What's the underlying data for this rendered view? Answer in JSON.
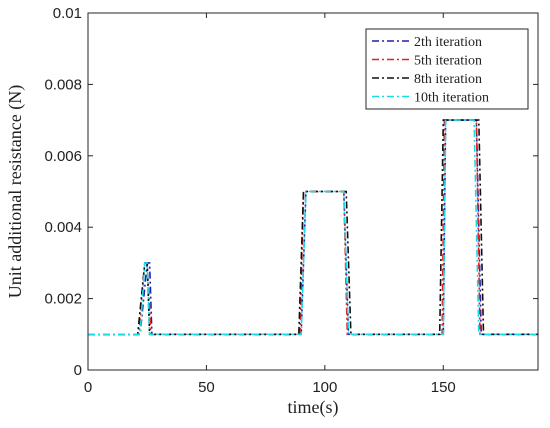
{
  "chart_data": {
    "type": "line",
    "title": "",
    "xlabel": "time(s)",
    "ylabel": "Unit additional resistance (N)",
    "xlim": [
      0,
      190
    ],
    "ylim": [
      0,
      0.01
    ],
    "xticks": [
      0,
      50,
      100,
      150
    ],
    "xtick_labels": [
      "0",
      "50",
      "100",
      "150"
    ],
    "yticks": [
      0,
      0.002,
      0.004,
      0.006,
      0.008,
      0.01
    ],
    "ytick_labels": [
      "0",
      "0.002",
      "0.004",
      "0.006",
      "0.008",
      "0.01"
    ],
    "grid": false,
    "legend_position": "top-right",
    "series": [
      {
        "name": "2th iteration",
        "color": "#1f1fb4",
        "line_style": "dash-dot",
        "x": [
          0,
          22,
          25,
          26,
          27,
          90,
          92,
          108,
          110,
          150,
          151,
          164,
          166,
          190
        ],
        "y": [
          0.001,
          0.001,
          0.003,
          0.003,
          0.001,
          0.001,
          0.005,
          0.005,
          0.001,
          0.001,
          0.007,
          0.007,
          0.001,
          0.001
        ]
      },
      {
        "name": "5th iteration",
        "color": "#e8201c",
        "line_style": "dash-dot",
        "x": [
          0,
          21.5,
          24,
          25,
          26.5,
          89.5,
          91,
          108,
          109.5,
          149.5,
          150.5,
          164,
          165.5,
          190
        ],
        "y": [
          0.001,
          0.001,
          0.003,
          0.003,
          0.001,
          0.001,
          0.005,
          0.005,
          0.001,
          0.001,
          0.007,
          0.007,
          0.001,
          0.001
        ]
      },
      {
        "name": "8th iteration",
        "color": "#111111",
        "line_style": "dash-dot",
        "x": [
          0,
          21,
          24,
          25,
          26,
          89,
          91,
          109,
          111,
          148.5,
          150,
          165,
          167,
          190
        ],
        "y": [
          0.001,
          0.001,
          0.003,
          0.003,
          0.001,
          0.001,
          0.005,
          0.005,
          0.001,
          0.001,
          0.007,
          0.007,
          0.001,
          0.001
        ]
      },
      {
        "name": "10th iteration",
        "color": "#19dce6",
        "line_style": "dash-dot",
        "x": [
          0,
          22,
          24,
          25,
          26,
          90,
          92,
          108,
          110,
          150,
          151,
          163,
          165,
          190
        ],
        "y": [
          0.001,
          0.001,
          0.003,
          0.003,
          0.001,
          0.001,
          0.005,
          0.005,
          0.001,
          0.001,
          0.007,
          0.007,
          0.001,
          0.001
        ]
      }
    ]
  }
}
